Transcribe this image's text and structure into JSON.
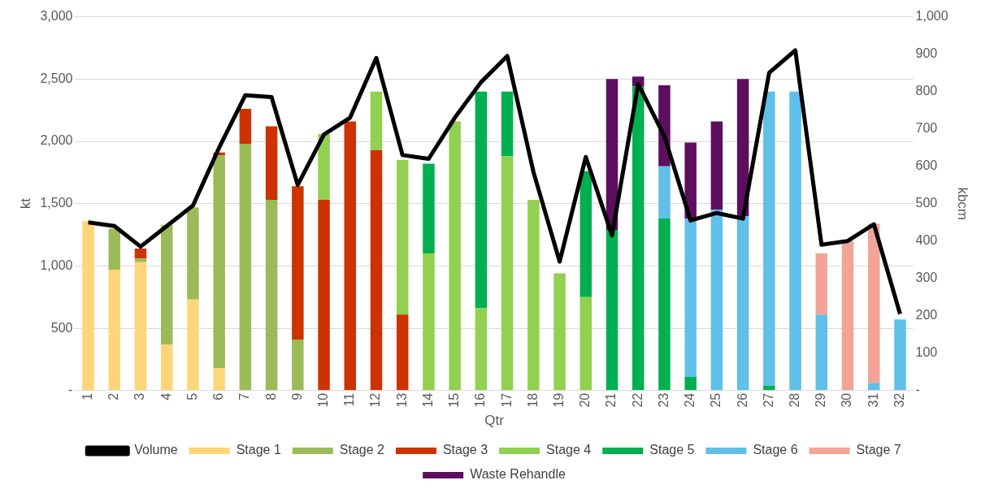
{
  "chart_data": {
    "type": "bar",
    "stacked": true,
    "xlabel": "Qtr",
    "ylabel": "kt",
    "y2label": "kbcm",
    "categories": [
      "1",
      "2",
      "3",
      "4",
      "5",
      "6",
      "7",
      "8",
      "9",
      "10",
      "11",
      "12",
      "13",
      "14",
      "15",
      "16",
      "17",
      "18",
      "19",
      "20",
      "21",
      "22",
      "23",
      "24",
      "25",
      "26",
      "27",
      "28",
      "29",
      "30",
      "31",
      "32"
    ],
    "series": [
      {
        "name": "Stage 1",
        "color": "#ffd579",
        "values": [
          1360,
          970,
          1030,
          370,
          730,
          180,
          null,
          null,
          null,
          null,
          null,
          null,
          null,
          null,
          null,
          null,
          null,
          null,
          null,
          null,
          null,
          null,
          null,
          null,
          null,
          null,
          null,
          null,
          null,
          null,
          null,
          null
        ]
      },
      {
        "name": "Stage 2",
        "color": "#9bbb59",
        "values": [
          null,
          330,
          30,
          960,
          740,
          1710,
          1980,
          1530,
          410,
          null,
          null,
          null,
          null,
          null,
          null,
          null,
          null,
          null,
          null,
          null,
          null,
          null,
          null,
          null,
          null,
          null,
          null,
          null,
          null,
          null,
          null,
          null
        ]
      },
      {
        "name": "Stage 3",
        "color": "#cc3300",
        "values": [
          null,
          null,
          80,
          null,
          null,
          20,
          280,
          590,
          1230,
          1530,
          2160,
          1930,
          610,
          null,
          null,
          null,
          null,
          null,
          null,
          null,
          null,
          null,
          null,
          null,
          null,
          null,
          null,
          null,
          null,
          null,
          null,
          null
        ]
      },
      {
        "name": "Stage 4",
        "color": "#92d050",
        "values": [
          null,
          null,
          null,
          null,
          null,
          null,
          null,
          null,
          null,
          530,
          null,
          470,
          1240,
          1100,
          2160,
          660,
          1880,
          1530,
          940,
          750,
          null,
          null,
          null,
          null,
          null,
          null,
          null,
          null,
          null,
          null,
          null,
          null
        ]
      },
      {
        "name": "Stage 5",
        "color": "#00b050",
        "values": [
          null,
          null,
          null,
          null,
          null,
          null,
          null,
          null,
          null,
          null,
          null,
          null,
          null,
          720,
          null,
          1740,
          520,
          null,
          null,
          1010,
          1290,
          2440,
          1380,
          110,
          null,
          null,
          40,
          null,
          null,
          null,
          null,
          null
        ]
      },
      {
        "name": "Stage 6",
        "color": "#5fc0e8",
        "values": [
          null,
          null,
          null,
          null,
          null,
          null,
          null,
          null,
          null,
          null,
          null,
          null,
          null,
          null,
          null,
          null,
          null,
          null,
          null,
          null,
          null,
          null,
          420,
          1270,
          1450,
          1400,
          2360,
          2400,
          610,
          null,
          60,
          570
        ]
      },
      {
        "name": "Stage 7",
        "color": "#f2a497",
        "values": [
          null,
          null,
          null,
          null,
          null,
          null,
          null,
          null,
          null,
          null,
          null,
          null,
          null,
          null,
          null,
          null,
          null,
          null,
          null,
          null,
          null,
          null,
          null,
          null,
          null,
          null,
          null,
          null,
          490,
          1200,
          1280,
          null
        ]
      },
      {
        "name": "Waste Rehandle",
        "color": "#5c0f5e",
        "values": [
          null,
          null,
          null,
          null,
          null,
          null,
          null,
          null,
          null,
          null,
          null,
          null,
          null,
          null,
          null,
          null,
          null,
          null,
          null,
          null,
          1210,
          80,
          650,
          610,
          710,
          1100,
          null,
          null,
          null,
          null,
          null,
          null
        ]
      },
      {
        "name": "Volume",
        "color": "#000000",
        "type": "line",
        "axis": "y2",
        "marker": "none",
        "values": [
          450,
          440,
          385,
          440,
          495,
          650,
          790,
          785,
          550,
          685,
          730,
          890,
          630,
          620,
          730,
          825,
          895,
          585,
          345,
          625,
          415,
          820,
          680,
          455,
          475,
          460,
          850,
          910,
          390,
          400,
          445,
          205
        ]
      }
    ],
    "ylim": [
      0,
      3000
    ],
    "yticks": [
      {
        "value": 0,
        "label": "-"
      },
      {
        "value": 500,
        "label": "500"
      },
      {
        "value": 1000,
        "label": "1,000"
      },
      {
        "value": 1500,
        "label": "1,500"
      },
      {
        "value": 2000,
        "label": "2,000"
      },
      {
        "value": 2500,
        "label": "2,500"
      },
      {
        "value": 3000,
        "label": "3,000"
      }
    ],
    "y2lim": [
      0,
      1000
    ],
    "y2ticks": [
      {
        "value": 0,
        "label": "-"
      },
      100,
      200,
      300,
      400,
      500,
      600,
      700,
      800,
      900,
      {
        "value": 1000,
        "label": "1,000"
      }
    ],
    "grid": "y",
    "legend": "bottom"
  }
}
